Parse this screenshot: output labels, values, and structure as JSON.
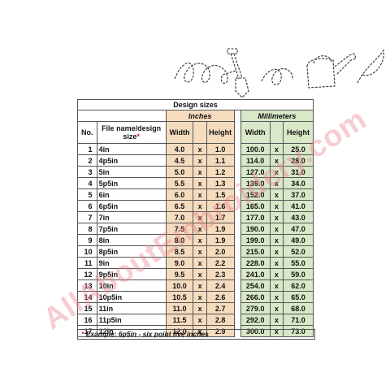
{
  "table": {
    "title": "Design sizes",
    "group_inches": "Inches",
    "group_mm": "Millimeters",
    "col_no": "No.",
    "col_name": "File name/design size",
    "col_name_mark": "*",
    "col_width": "Width",
    "col_height": "Height",
    "sep": "x",
    "rows": [
      {
        "no": "1",
        "name": "4in",
        "w_in": "4.0",
        "h_in": "1.0",
        "w_mm": "100.0",
        "h_mm": "25.0"
      },
      {
        "no": "2",
        "name": "4p5in",
        "w_in": "4.5",
        "h_in": "1.1",
        "w_mm": "114.0",
        "h_mm": "28.0"
      },
      {
        "no": "3",
        "name": "5in",
        "w_in": "5.0",
        "h_in": "1.2",
        "w_mm": "127.0",
        "h_mm": "31.0"
      },
      {
        "no": "4",
        "name": "5p5in",
        "w_in": "5.5",
        "h_in": "1.3",
        "w_mm": "139.0",
        "h_mm": "34.0"
      },
      {
        "no": "5",
        "name": "6in",
        "w_in": "6.0",
        "h_in": "1.5",
        "w_mm": "152.0",
        "h_mm": "37.0"
      },
      {
        "no": "6",
        "name": "6p5in",
        "w_in": "6.5",
        "h_in": "1.6",
        "w_mm": "165.0",
        "h_mm": "41.0"
      },
      {
        "no": "7",
        "name": "7in",
        "w_in": "7.0",
        "h_in": "1.7",
        "w_mm": "177.0",
        "h_mm": "43.0"
      },
      {
        "no": "8",
        "name": "7p5in",
        "w_in": "7.5",
        "h_in": "1.9",
        "w_mm": "190.0",
        "h_mm": "47.0"
      },
      {
        "no": "9",
        "name": "8in",
        "w_in": "8.0",
        "h_in": "1.9",
        "w_mm": "199.0",
        "h_mm": "49.0"
      },
      {
        "no": "10",
        "name": "8p5in",
        "w_in": "8.5",
        "h_in": "2.0",
        "w_mm": "215.0",
        "h_mm": "52.0"
      },
      {
        "no": "11",
        "name": "9in",
        "w_in": "9.0",
        "h_in": "2.2",
        "w_mm": "228.0",
        "h_mm": "55.0"
      },
      {
        "no": "12",
        "name": "9p5in",
        "w_in": "9.5",
        "h_in": "2.3",
        "w_mm": "241.0",
        "h_mm": "59.0"
      },
      {
        "no": "13",
        "name": "10in",
        "w_in": "10.0",
        "h_in": "2.4",
        "w_mm": "254.0",
        "h_mm": "62.0"
      },
      {
        "no": "14",
        "name": "10p5in",
        "w_in": "10.5",
        "h_in": "2.6",
        "w_mm": "266.0",
        "h_mm": "65.0"
      },
      {
        "no": "15",
        "name": "11in",
        "w_in": "11.0",
        "h_in": "2.7",
        "w_mm": "279.0",
        "h_mm": "68.0"
      },
      {
        "no": "16",
        "name": "11p5in",
        "w_in": "11.5",
        "h_in": "2.8",
        "w_mm": "292.0",
        "h_mm": "71.0"
      },
      {
        "no": "17",
        "name": "12in",
        "w_in": "12.0",
        "h_in": "2.9",
        "w_mm": "300.0",
        "h_mm": "73.0"
      }
    ],
    "note_mark": "*",
    "note": "Example: 6p5in - six point five inches"
  },
  "watermark": "AllAboutEmbroidery.com",
  "colors": {
    "inches_fill": "#f6dcbf",
    "mm_fill": "#d8e8c8",
    "mark": "#d2232a",
    "watermark": "#e8828c"
  },
  "design_preview": {
    "motifs": [
      "shovel-icon",
      "watering-can-icon"
    ],
    "style": "stitch-outline"
  }
}
